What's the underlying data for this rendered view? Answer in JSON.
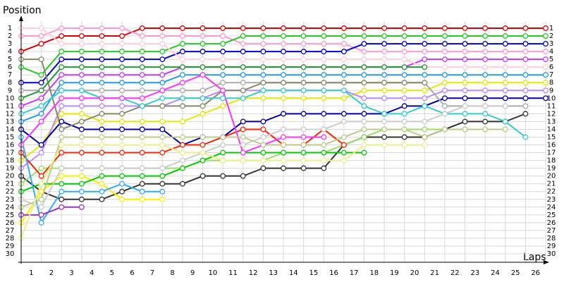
{
  "chart_data": {
    "type": "line",
    "y_label": "Position",
    "x_label": "Laps",
    "x": [
      0,
      1,
      2,
      3,
      4,
      5,
      6,
      7,
      8,
      9,
      10,
      11,
      12,
      13,
      14,
      15,
      16,
      17,
      18,
      19,
      20,
      21,
      22,
      23,
      24,
      25,
      26
    ],
    "xlim": [
      0,
      26
    ],
    "xticks": [
      1,
      2,
      3,
      4,
      5,
      6,
      7,
      8,
      9,
      10,
      11,
      12,
      13,
      14,
      15,
      16,
      17,
      18,
      19,
      20,
      21,
      22,
      23,
      24,
      25,
      26
    ],
    "ylim": [
      1,
      30
    ],
    "yticks": [
      1,
      2,
      3,
      4,
      5,
      6,
      7,
      8,
      9,
      10,
      11,
      12,
      13,
      14,
      15,
      16,
      17,
      18,
      19,
      20,
      21,
      22,
      23,
      24,
      25,
      26,
      27,
      28,
      29,
      30
    ],
    "y_reversed": true,
    "grid": true,
    "series": [
      {
        "color": "#e00000",
        "values": [
          4,
          3,
          2,
          2,
          2,
          2,
          1,
          1,
          1,
          1,
          1,
          1,
          1,
          1,
          1,
          1,
          1,
          1,
          1,
          1,
          1,
          1,
          1,
          1,
          1,
          1,
          1
        ]
      },
      {
        "color": "#ff99cc",
        "values": [
          2,
          2,
          1,
          1,
          1,
          1,
          2,
          2,
          2,
          2,
          2,
          3,
          3,
          3,
          3,
          3,
          3,
          4,
          4,
          4,
          4,
          4,
          4,
          4,
          4,
          4,
          4
        ]
      },
      {
        "color": "#22cc22",
        "values": [
          6,
          7,
          4,
          4,
          4,
          4,
          4,
          4,
          3,
          3,
          3,
          2,
          2,
          2,
          2,
          2,
          2,
          2,
          2,
          2,
          2,
          2,
          2,
          2,
          2,
          2,
          2
        ]
      },
      {
        "color": "#0000dd",
        "values": [
          8,
          8,
          5,
          5,
          5,
          5,
          5,
          5,
          4,
          4,
          4,
          4,
          4,
          4,
          4,
          4,
          4,
          3,
          3,
          3,
          3,
          3,
          3,
          3,
          3,
          3,
          3
        ]
      },
      {
        "color": "#cc33ff",
        "values": [
          11,
          10,
          7,
          7,
          7,
          7,
          7,
          7,
          6,
          6,
          6,
          6,
          6,
          6,
          6,
          6,
          6,
          6,
          6,
          6,
          5,
          5,
          5,
          5,
          5,
          5,
          5
        ]
      },
      {
        "color": "#ffccdd",
        "values": [
          1,
          1,
          3,
          3,
          3,
          3,
          3,
          3,
          5,
          5,
          5,
          5,
          5,
          5,
          5,
          5,
          5,
          5,
          5,
          5,
          6,
          6,
          6,
          6,
          6,
          6,
          6
        ]
      },
      {
        "color": "#2299ee",
        "values": [
          13,
          12,
          8,
          8,
          8,
          8,
          8,
          8,
          7,
          7,
          7,
          7,
          7,
          7,
          7,
          7,
          7,
          7,
          7,
          7,
          7,
          7,
          7,
          7,
          7,
          7,
          7
        ]
      },
      {
        "color": "#e6e600",
        "values": [
          18,
          16,
          12,
          12,
          13,
          13,
          13,
          13,
          13,
          12,
          11,
          10,
          10,
          10,
          10,
          10,
          10,
          9,
          9,
          9,
          9,
          8,
          8,
          8,
          8,
          8,
          8
        ]
      },
      {
        "color": "#bb88ff",
        "values": [
          19,
          17,
          11,
          11,
          11,
          11,
          11,
          11,
          10,
          10,
          9,
          9,
          9,
          9,
          9,
          9,
          9,
          10,
          10,
          10,
          10,
          9,
          9,
          9,
          9,
          9,
          9
        ]
      },
      {
        "color": "#0000aa",
        "values": [
          14,
          16,
          13,
          14,
          14,
          14,
          14,
          14,
          16,
          15,
          15,
          13,
          13,
          12,
          12,
          12,
          12,
          12,
          12,
          11,
          11,
          10,
          10,
          10,
          10,
          10,
          10
        ]
      },
      {
        "color": "#aaaaaa",
        "values": [
          9,
          9,
          9,
          9,
          9,
          9,
          9,
          9,
          9,
          9,
          8,
          8,
          8,
          8,
          8,
          8,
          8,
          8,
          8,
          8,
          8,
          11,
          11,
          11,
          11,
          11,
          null
        ]
      },
      {
        "color": "#333333",
        "values": [
          20,
          22,
          23,
          23,
          23,
          22,
          21,
          21,
          21,
          20,
          20,
          20,
          19,
          19,
          19,
          19,
          16,
          15,
          15,
          15,
          15,
          14,
          13,
          13,
          13,
          12,
          null
        ]
      },
      {
        "color": "#888866",
        "values": [
          5,
          5,
          14,
          13,
          12,
          12,
          11,
          11,
          11,
          11,
          9,
          9,
          8,
          8,
          8,
          8,
          8,
          8,
          8,
          8,
          8,
          null,
          null,
          null,
          null,
          null,
          null
        ]
      },
      {
        "color": "#33cccc",
        "values": [
          12,
          11,
          9,
          9,
          10,
          10,
          11,
          10,
          10,
          10,
          10,
          10,
          9,
          9,
          9,
          9,
          9,
          11,
          12,
          12,
          11,
          12,
          12,
          12,
          13,
          15,
          null
        ]
      },
      {
        "color": "#229933",
        "values": [
          10,
          9,
          6,
          6,
          6,
          6,
          6,
          6,
          6,
          6,
          6,
          6,
          6,
          6,
          6,
          6,
          6,
          6,
          6,
          6,
          6,
          null,
          null,
          null,
          null,
          null,
          null
        ]
      },
      {
        "color": "#99dd66",
        "values": [
          21,
          19,
          19,
          19,
          19,
          19,
          19,
          19,
          19,
          18,
          18,
          18,
          18,
          17,
          17,
          17,
          16,
          15,
          14,
          14,
          14,
          14,
          14,
          14,
          14,
          null,
          null
        ]
      },
      {
        "color": "#ffee00",
        "values": [
          26,
          22,
          20,
          20,
          21,
          23,
          23,
          23,
          null,
          null,
          null,
          null,
          null,
          null,
          null,
          null,
          null,
          null,
          null,
          null,
          null,
          null,
          null,
          null,
          null,
          null,
          null
        ]
      },
      {
        "color": "#00cc00",
        "values": [
          22,
          21,
          21,
          21,
          20,
          20,
          20,
          20,
          19,
          18,
          17,
          17,
          17,
          17,
          17,
          17,
          17,
          17,
          null,
          null,
          null,
          null,
          null,
          null,
          null,
          null,
          null
        ]
      },
      {
        "color": "#ff2200",
        "values": [
          17,
          20,
          17,
          17,
          17,
          17,
          17,
          17,
          16,
          16,
          15,
          14,
          14,
          16,
          16,
          14,
          16,
          null,
          null,
          null,
          null,
          null,
          null,
          null,
          null,
          null,
          null
        ]
      },
      {
        "color": "#ff33ff",
        "values": [
          16,
          13,
          10,
          10,
          10,
          10,
          10,
          9,
          8,
          7,
          9,
          17,
          16,
          15,
          15,
          15,
          null,
          null,
          null,
          null,
          null,
          null,
          null,
          null,
          null,
          null,
          null
        ]
      },
      {
        "color": "#33aaff",
        "values": [
          15,
          26,
          22,
          22,
          22,
          21,
          22,
          22,
          null,
          null,
          null,
          null,
          null,
          null,
          null,
          null,
          null,
          null,
          null,
          null,
          null,
          null,
          null,
          null,
          null,
          null,
          null
        ]
      },
      {
        "color": "#9933cc",
        "values": [
          25,
          25,
          24,
          24,
          null,
          null,
          null,
          null,
          null,
          null,
          null,
          null,
          null,
          null,
          null,
          null,
          null,
          null,
          null,
          null,
          null,
          null,
          null,
          null,
          null,
          null,
          null
        ]
      },
      {
        "color": "#cccccc",
        "values": [
          23,
          24,
          19,
          19,
          19,
          19,
          19,
          19,
          18,
          17,
          16,
          16,
          15,
          14,
          14,
          14,
          13,
          13,
          13,
          13,
          13,
          12,
          11,
          11,
          11,
          null,
          null
        ]
      },
      {
        "color": "#bbcc88",
        "values": [
          24,
          23,
          15,
          15,
          15,
          15,
          15,
          15,
          15,
          15,
          15,
          15,
          16,
          16,
          16,
          16,
          15,
          14,
          14,
          14,
          15,
          14,
          14,
          14,
          14,
          null,
          null
        ]
      },
      {
        "color": "#eeee88",
        "values": [
          28,
          21,
          16,
          16,
          16,
          16,
          16,
          16,
          17,
          17,
          18,
          18,
          18,
          18,
          18,
          18,
          18,
          16,
          16,
          16,
          16,
          null,
          null,
          null,
          null,
          null,
          null
        ]
      }
    ]
  }
}
